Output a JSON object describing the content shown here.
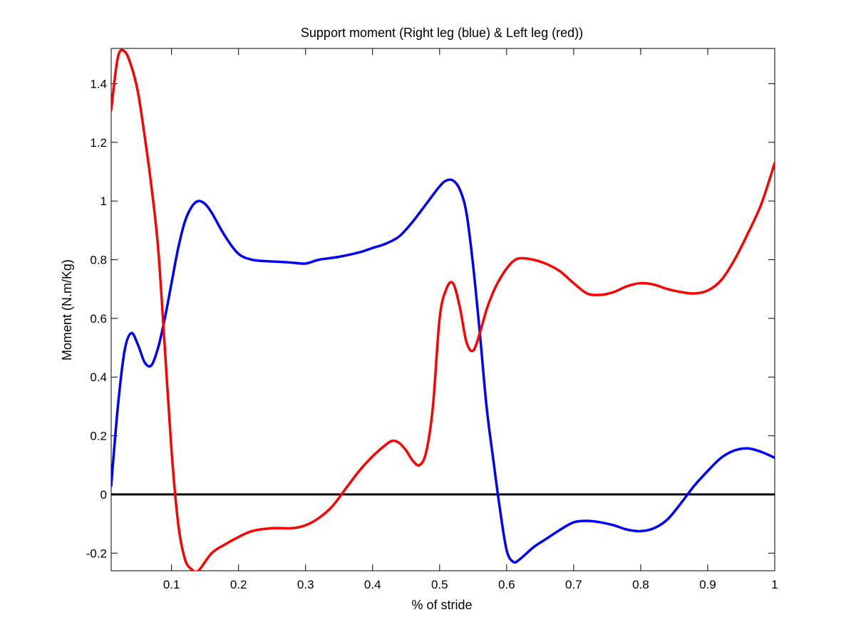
{
  "chart_data": {
    "type": "line",
    "title": "Support moment (Right leg (blue) & Left leg (red))",
    "xlabel": "% of stride",
    "ylabel": "Moment (N.m/Kg)",
    "xlim": [
      0.01,
      1.0
    ],
    "ylim": [
      -0.26,
      1.52
    ],
    "xticks": [
      0.1,
      0.2,
      0.3,
      0.4,
      0.5,
      0.6,
      0.7,
      0.8,
      0.9,
      1
    ],
    "xtick_labels": [
      "0.1",
      "0.2",
      "0.3",
      "0.4",
      "0.5",
      "0.6",
      "0.7",
      "0.8",
      "0.9",
      "1"
    ],
    "yticks": [
      -0.2,
      0,
      0.2,
      0.4,
      0.6,
      0.8,
      1,
      1.2,
      1.4
    ],
    "ytick_labels": [
      "-0.2",
      "0",
      "0.2",
      "0.4",
      "0.6",
      "0.8",
      "1",
      "1.2",
      "1.4"
    ],
    "grid": false,
    "reference_line": {
      "y": 0,
      "color": "#000000"
    },
    "series": [
      {
        "color": "#0000ff",
        "x": [
          0.01,
          0.02,
          0.03,
          0.04,
          0.05,
          0.06,
          0.07,
          0.08,
          0.09,
          0.1,
          0.11,
          0.12,
          0.13,
          0.14,
          0.15,
          0.16,
          0.18,
          0.2,
          0.22,
          0.24,
          0.26,
          0.28,
          0.3,
          0.32,
          0.35,
          0.38,
          0.4,
          0.42,
          0.44,
          0.46,
          0.48,
          0.5,
          0.51,
          0.52,
          0.53,
          0.54,
          0.55,
          0.56,
          0.57,
          0.58,
          0.59,
          0.6,
          0.61,
          0.62,
          0.64,
          0.66,
          0.68,
          0.7,
          0.72,
          0.74,
          0.76,
          0.78,
          0.8,
          0.82,
          0.84,
          0.86,
          0.88,
          0.9,
          0.92,
          0.94,
          0.96,
          0.98,
          1.0
        ],
        "y": [
          0.03,
          0.3,
          0.49,
          0.55,
          0.51,
          0.45,
          0.44,
          0.5,
          0.6,
          0.72,
          0.84,
          0.93,
          0.98,
          1.0,
          0.99,
          0.96,
          0.88,
          0.82,
          0.8,
          0.795,
          0.793,
          0.79,
          0.787,
          0.8,
          0.81,
          0.825,
          0.84,
          0.855,
          0.88,
          0.93,
          0.99,
          1.05,
          1.07,
          1.07,
          1.04,
          0.96,
          0.78,
          0.55,
          0.3,
          0.12,
          -0.05,
          -0.19,
          -0.23,
          -0.22,
          -0.18,
          -0.15,
          -0.12,
          -0.095,
          -0.09,
          -0.095,
          -0.105,
          -0.12,
          -0.125,
          -0.115,
          -0.085,
          -0.03,
          0.03,
          0.08,
          0.125,
          0.15,
          0.157,
          0.145,
          0.125
        ]
      },
      {
        "color": "#ff0000",
        "x": [
          0.01,
          0.02,
          0.03,
          0.04,
          0.05,
          0.06,
          0.07,
          0.08,
          0.09,
          0.1,
          0.11,
          0.12,
          0.13,
          0.14,
          0.16,
          0.18,
          0.2,
          0.22,
          0.25,
          0.28,
          0.3,
          0.32,
          0.34,
          0.36,
          0.38,
          0.4,
          0.42,
          0.43,
          0.44,
          0.45,
          0.46,
          0.47,
          0.48,
          0.49,
          0.5,
          0.51,
          0.52,
          0.53,
          0.54,
          0.55,
          0.56,
          0.57,
          0.58,
          0.59,
          0.6,
          0.61,
          0.62,
          0.64,
          0.66,
          0.68,
          0.7,
          0.72,
          0.74,
          0.76,
          0.78,
          0.8,
          0.82,
          0.84,
          0.86,
          0.88,
          0.9,
          0.92,
          0.94,
          0.96,
          0.98,
          1.0
        ],
        "y": [
          1.31,
          1.49,
          1.51,
          1.46,
          1.37,
          1.22,
          1.05,
          0.84,
          0.5,
          0.15,
          -0.1,
          -0.22,
          -0.255,
          -0.26,
          -0.2,
          -0.17,
          -0.145,
          -0.125,
          -0.115,
          -0.115,
          -0.105,
          -0.08,
          -0.04,
          0.02,
          0.08,
          0.13,
          0.17,
          0.183,
          0.175,
          0.15,
          0.115,
          0.1,
          0.145,
          0.3,
          0.6,
          0.7,
          0.72,
          0.64,
          0.52,
          0.49,
          0.55,
          0.63,
          0.69,
          0.735,
          0.77,
          0.795,
          0.805,
          0.8,
          0.785,
          0.76,
          0.72,
          0.685,
          0.68,
          0.69,
          0.71,
          0.72,
          0.715,
          0.7,
          0.69,
          0.685,
          0.695,
          0.73,
          0.8,
          0.89,
          0.99,
          1.13
        ]
      }
    ]
  }
}
